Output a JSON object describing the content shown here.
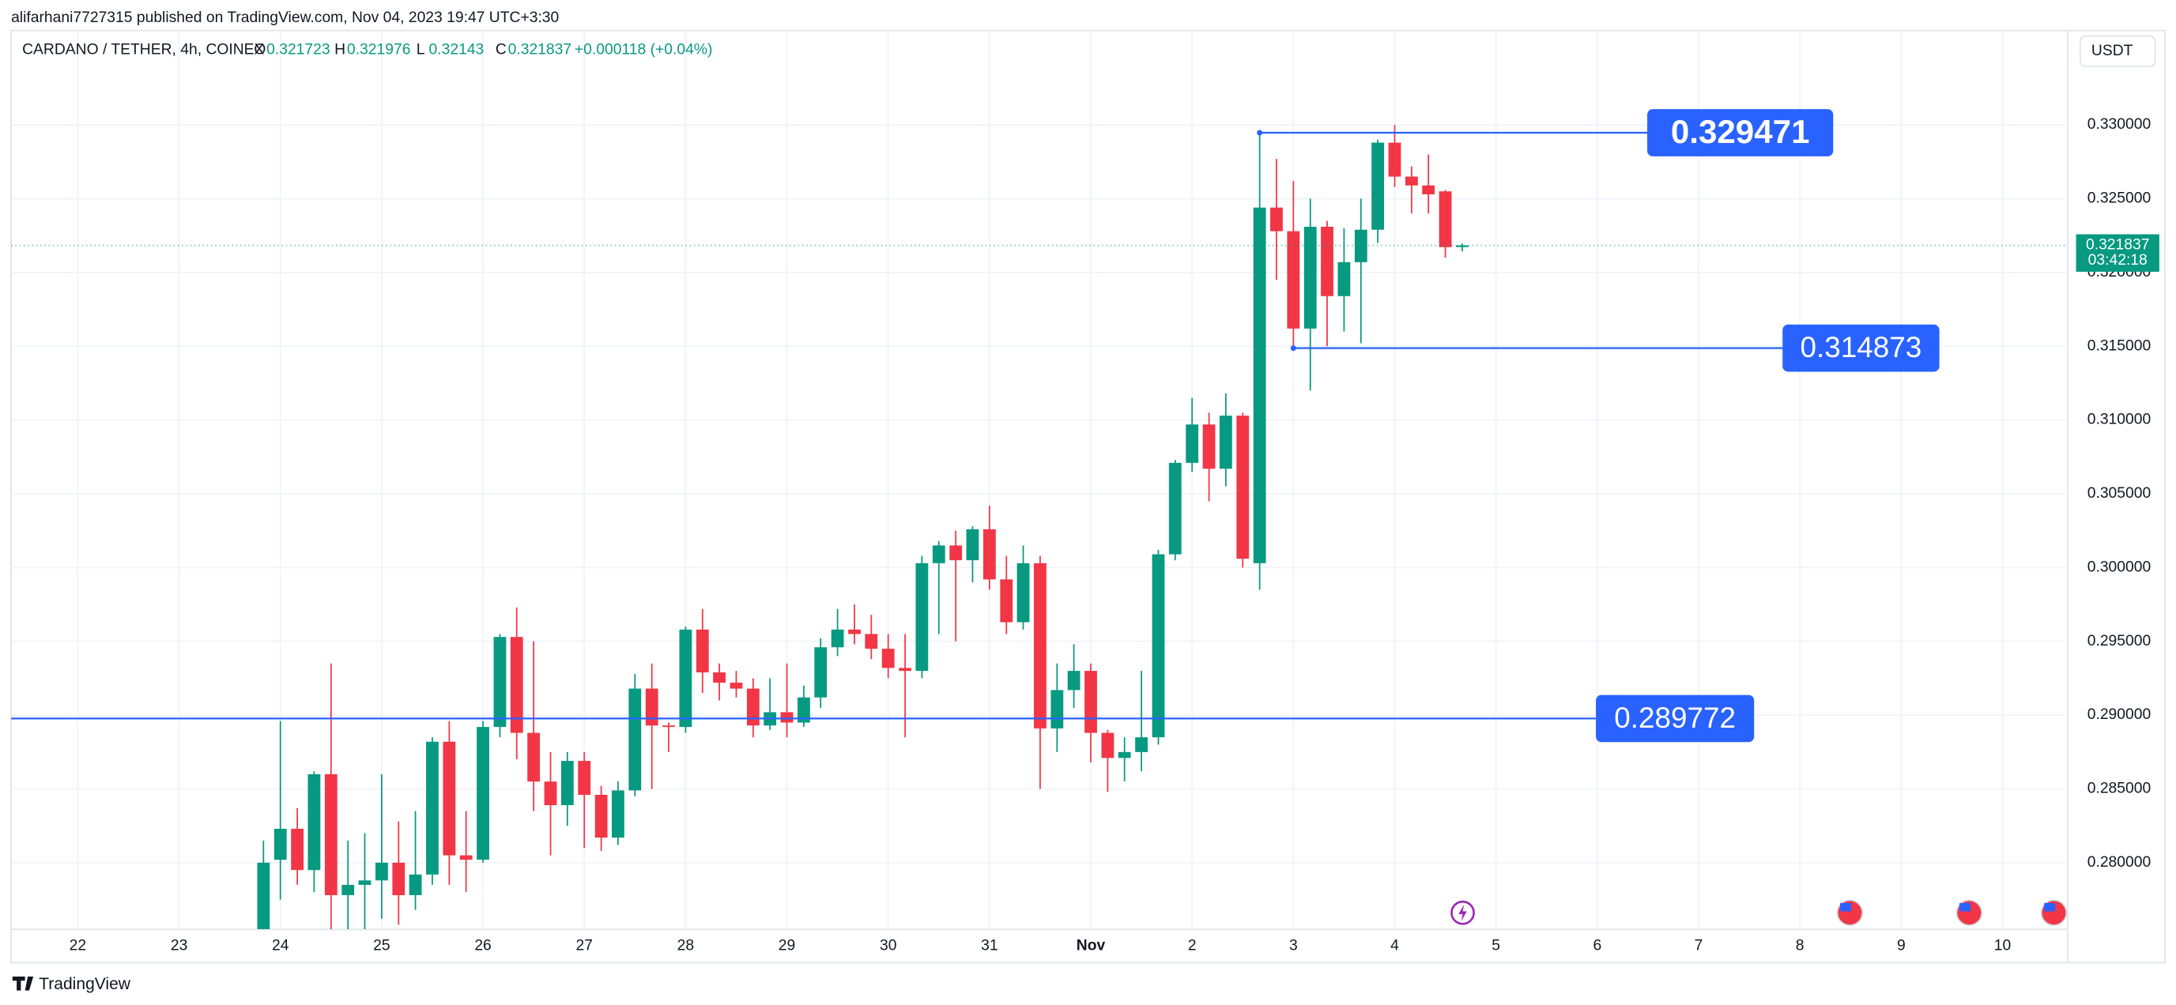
{
  "header": {
    "published": "alifarhani7727315 published on TradingView.com, Nov 04, 2023 19:47 UTC+3:30",
    "logo": "TradingView"
  },
  "chart_data": {
    "type": "candlestick",
    "title": "CARDANO / TETHER, 4h, COINEX",
    "legend_labels": {
      "open": "O",
      "high": "H",
      "low": "L",
      "close": "C"
    },
    "change": "+0.000118 (+0.04%)",
    "currency": "USDT",
    "countdown": "03:42:18",
    "up_color": "#089981",
    "down_color": "#f23645",
    "grid": true,
    "x": [
      23.833,
      24,
      24.167,
      24.333,
      24.5,
      24.667,
      24.833,
      25,
      25.167,
      25.333,
      25.5,
      25.667,
      25.833,
      26,
      26.167,
      26.333,
      26.5,
      26.667,
      26.833,
      27,
      27.167,
      27.333,
      27.5,
      27.667,
      27.833,
      28,
      28.167,
      28.333,
      28.5,
      28.667,
      28.833,
      29,
      29.167,
      29.333,
      29.5,
      29.667,
      29.833,
      30,
      30.167,
      30.333,
      30.5,
      30.667,
      30.833,
      31,
      31.167,
      31.333,
      31.5,
      31.667,
      31.833,
      32,
      32.167,
      32.333,
      32.5,
      32.667,
      32.833,
      33,
      33.167,
      33.333,
      33.5,
      33.667,
      33.833,
      34,
      34.167,
      34.333,
      34.5,
      34.667,
      34.833,
      35,
      35.167,
      35.333,
      35.5,
      35.667
    ],
    "open": [
      0.2755,
      0.2802,
      0.2823,
      0.2795,
      0.286,
      0.2778,
      0.2785,
      0.2788,
      0.28,
      0.2778,
      0.2792,
      0.2882,
      0.2805,
      0.2802,
      0.2892,
      0.2953,
      0.2888,
      0.2855,
      0.2839,
      0.2869,
      0.2846,
      0.2817,
      0.2849,
      0.2918,
      0.2893,
      0.2892,
      0.2958,
      0.2929,
      0.2922,
      0.2918,
      0.2893,
      0.2902,
      0.2895,
      0.2912,
      0.2946,
      0.2958,
      0.2955,
      0.2945,
      0.2932,
      0.293,
      0.3003,
      0.3015,
      0.3005,
      0.3026,
      0.2992,
      0.2963,
      0.3003,
      0.2891,
      0.2917,
      0.293,
      0.2888,
      0.2871,
      0.2875,
      0.2885,
      0.3009,
      0.3071,
      0.3097,
      0.3067,
      0.3103,
      0.3003,
      0.3244,
      0.3228,
      0.3162,
      0.3231,
      0.3184,
      0.3207,
      0.3229,
      0.3288,
      0.3265,
      0.3259,
      0.3255,
      0.321723
    ],
    "high": [
      0.2815,
      0.2896,
      0.2837,
      0.2862,
      0.2935,
      0.2815,
      0.282,
      0.286,
      0.2828,
      0.2835,
      0.2885,
      0.2896,
      0.2835,
      0.2896,
      0.2955,
      0.2973,
      0.295,
      0.2875,
      0.2875,
      0.2875,
      0.2852,
      0.2855,
      0.2928,
      0.2935,
      0.2895,
      0.296,
      0.2972,
      0.2935,
      0.293,
      0.2925,
      0.2925,
      0.2935,
      0.292,
      0.2952,
      0.2972,
      0.2975,
      0.2968,
      0.2955,
      0.2955,
      0.3008,
      0.3018,
      0.3025,
      0.3028,
      0.3042,
      0.3008,
      0.3015,
      0.3008,
      0.2935,
      0.2948,
      0.2935,
      0.289,
      0.2885,
      0.293,
      0.3012,
      0.3073,
      0.3115,
      0.3105,
      0.3118,
      0.3105,
      0.32947,
      0.3277,
      0.3262,
      0.325,
      0.3235,
      0.323,
      0.325,
      0.329,
      0.33,
      0.3272,
      0.328,
      0.3256,
      0.321976
    ],
    "low": [
      0.2755,
      0.2775,
      0.2785,
      0.278,
      0.2755,
      0.2755,
      0.2755,
      0.2762,
      0.2758,
      0.2768,
      0.2785,
      0.2785,
      0.278,
      0.28,
      0.2885,
      0.287,
      0.2835,
      0.2805,
      0.2825,
      0.281,
      0.2808,
      0.2812,
      0.2845,
      0.285,
      0.2875,
      0.2888,
      0.2915,
      0.291,
      0.2912,
      0.2885,
      0.289,
      0.2885,
      0.2892,
      0.2905,
      0.294,
      0.2948,
      0.2938,
      0.2925,
      0.2885,
      0.2925,
      0.2955,
      0.295,
      0.299,
      0.2985,
      0.2955,
      0.2958,
      0.285,
      0.2875,
      0.2905,
      0.2868,
      0.2848,
      0.2855,
      0.2862,
      0.288,
      0.3005,
      0.3065,
      0.3045,
      0.3055,
      0.3,
      0.2985,
      0.3195,
      0.31487,
      0.312,
      0.315,
      0.316,
      0.3152,
      0.322,
      0.3258,
      0.324,
      0.324,
      0.321,
      0.32143
    ],
    "close": [
      0.28,
      0.2823,
      0.2795,
      0.286,
      0.2778,
      0.2785,
      0.2788,
      0.28,
      0.2778,
      0.2792,
      0.2882,
      0.2805,
      0.2802,
      0.2892,
      0.2953,
      0.2888,
      0.2855,
      0.2839,
      0.2869,
      0.2846,
      0.2817,
      0.2849,
      0.2918,
      0.2893,
      0.2892,
      0.2958,
      0.2929,
      0.2922,
      0.2918,
      0.2893,
      0.2902,
      0.2895,
      0.2912,
      0.2946,
      0.2958,
      0.2955,
      0.2945,
      0.2932,
      0.293,
      0.3003,
      0.3015,
      0.3005,
      0.3026,
      0.2992,
      0.2963,
      0.3003,
      0.2891,
      0.2917,
      0.293,
      0.2888,
      0.2871,
      0.2875,
      0.2885,
      0.3009,
      0.3071,
      0.3097,
      0.3067,
      0.3103,
      0.3006,
      0.3244,
      0.3228,
      0.3162,
      0.3231,
      0.3184,
      0.3207,
      0.3229,
      0.3288,
      0.3265,
      0.3259,
      0.3253,
      0.32172,
      0.321837
    ],
    "xlim": [
      21.342,
      41.644
    ],
    "xticks": [
      22,
      23,
      24,
      25,
      26,
      27,
      28,
      29,
      30,
      31,
      {
        "value": 32,
        "label": "Nov"
      },
      {
        "value": 33,
        "label": "2"
      },
      {
        "value": 34,
        "label": "3"
      },
      {
        "value": 35,
        "label": "4"
      },
      {
        "value": 36,
        "label": "5"
      },
      {
        "value": 37,
        "label": "6"
      },
      {
        "value": 38,
        "label": "7"
      },
      {
        "value": 39,
        "label": "8"
      },
      {
        "value": 40,
        "label": "9"
      },
      {
        "value": 41,
        "label": "10"
      }
    ],
    "ylim": [
      0.27548,
      0.3364
    ],
    "yticks": [
      {
        "value": 0.28,
        "label": "0.280000"
      },
      {
        "value": 0.285,
        "label": "0.285000"
      },
      {
        "value": 0.29,
        "label": "0.290000"
      },
      {
        "value": 0.295,
        "label": "0.295000"
      },
      {
        "value": 0.3,
        "label": "0.300000"
      },
      {
        "value": 0.305,
        "label": "0.305000"
      },
      {
        "value": 0.31,
        "label": "0.310000"
      },
      {
        "value": 0.315,
        "label": "0.315000"
      },
      {
        "value": 0.32,
        "label": "0.320000"
      },
      {
        "value": 0.325,
        "label": "0.325000"
      },
      {
        "value": 0.33,
        "label": "0.330000"
      }
    ],
    "levels": [
      {
        "value": 0.329471,
        "x": 33.667,
        "color": "#2962ff"
      },
      {
        "value": 0.314873,
        "x": 34.0,
        "color": "#2962ff"
      },
      {
        "value": 0.289772,
        "x": 21.342,
        "color": "#2962ff"
      }
    ]
  }
}
